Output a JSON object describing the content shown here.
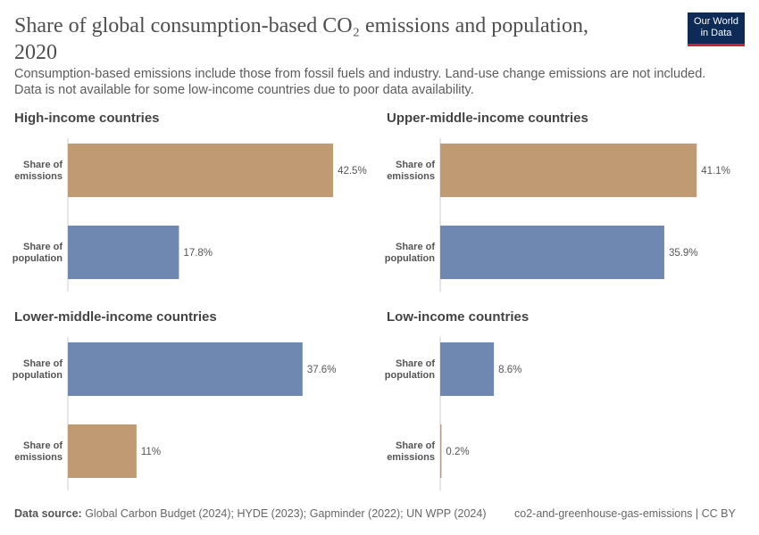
{
  "header": {
    "title": "Share of global consumption-based CO₂ emissions and population, 2020",
    "subtitle": "Consumption-based emissions include those from fossil fuels and industry. Land-use change emissions are not included. Data is not available for some low-income countries due to poor data availability.",
    "logo": "Our World in Data"
  },
  "footer": {
    "source_label": "Data source:",
    "source": " Global Carbon Budget (2024); HYDE (2023); Gapminder (2022); UN WPP (2024)",
    "slug": "co2-and-greenhouse-gas-emissions | CC BY"
  },
  "colors": {
    "emissions": "#bf9a72",
    "population": "#6e88b1"
  },
  "chart_data": [
    {
      "type": "bar",
      "orientation": "horizontal",
      "title": "High-income countries",
      "categories": [
        "Share of emissions",
        "Share of population"
      ],
      "values": [
        42.5,
        17.8
      ],
      "labels": [
        "42.5%",
        "17.8%"
      ]
    },
    {
      "type": "bar",
      "orientation": "horizontal",
      "title": "Upper-middle-income countries",
      "categories": [
        "Share of emissions",
        "Share of population"
      ],
      "values": [
        41.1,
        35.9
      ],
      "labels": [
        "41.1%",
        "35.9%"
      ]
    },
    {
      "type": "bar",
      "orientation": "horizontal",
      "title": "Lower-middle-income countries",
      "categories": [
        "Share of population",
        "Share of emissions"
      ],
      "values": [
        37.6,
        11
      ],
      "labels": [
        "37.6%",
        "11%"
      ]
    },
    {
      "type": "bar",
      "orientation": "horizontal",
      "title": "Low-income countries",
      "categories": [
        "Share of population",
        "Share of emissions"
      ],
      "values": [
        8.6,
        0.2
      ],
      "labels": [
        "8.6%",
        "0.2%"
      ]
    }
  ]
}
